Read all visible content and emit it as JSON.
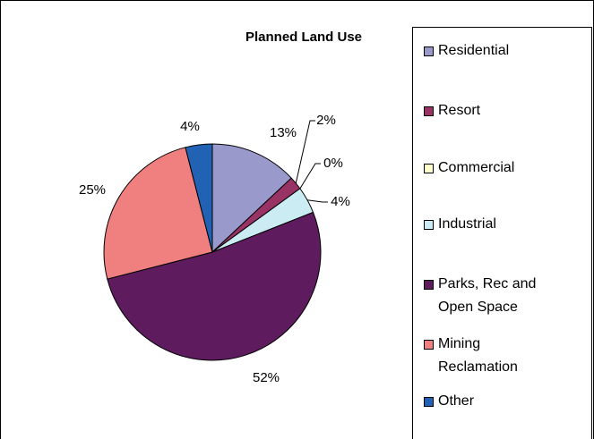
{
  "chart_data": {
    "type": "pie",
    "title": "Planned Land Use",
    "categories": [
      "Residential",
      "Resort",
      "Commercial",
      "Industrial",
      "Parks, Rec and Open Space",
      "Mining Reclamation",
      "Other"
    ],
    "values": [
      13,
      2,
      0,
      4,
      52,
      25,
      4
    ],
    "value_labels": [
      "13%",
      "2%",
      "0%",
      "4%",
      "52%",
      "25%",
      "4%"
    ],
    "colors": [
      "#9999cc",
      "#993366",
      "#ffffcc",
      "#ccecf4",
      "#5e1b5e",
      "#f08080",
      "#2262b4"
    ],
    "legend": "right"
  }
}
